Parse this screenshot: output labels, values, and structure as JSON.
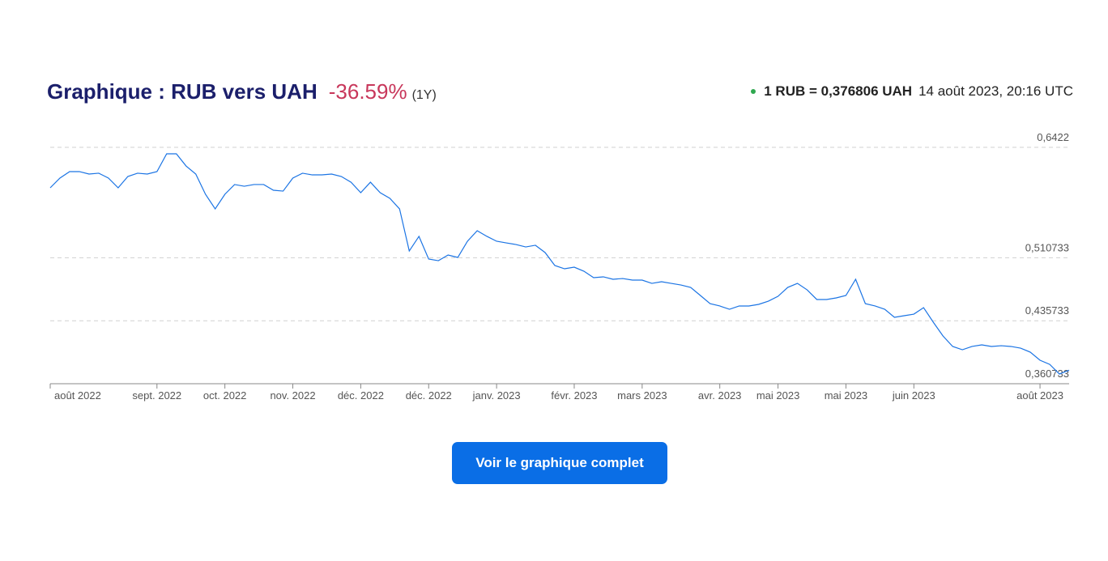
{
  "header": {
    "title": "Graphique : RUB vers UAH",
    "change": "-36.59%",
    "period": "(1Y)",
    "rate": "1 RUB = 0,376806 UAH",
    "timestamp": "14 août 2023, 20:16 UTC"
  },
  "button": {
    "label": "Voir le graphique complet"
  },
  "chart_data": {
    "type": "line",
    "categories": [
      "août 2022",
      null,
      null,
      null,
      null,
      null,
      null,
      null,
      null,
      null,
      null,
      "sept. 2022",
      null,
      null,
      null,
      null,
      null,
      null,
      "oct. 2022",
      null,
      null,
      null,
      null,
      null,
      null,
      "nov. 2022",
      null,
      null,
      null,
      null,
      null,
      null,
      "déc. 2022",
      null,
      null,
      null,
      null,
      null,
      null,
      "déc. 2022",
      null,
      null,
      null,
      null,
      null,
      null,
      "janv. 2023",
      null,
      null,
      null,
      null,
      null,
      null,
      null,
      "févr. 2023",
      null,
      null,
      null,
      null,
      null,
      null,
      "mars 2023",
      null,
      null,
      null,
      null,
      null,
      null,
      null,
      "avr. 2023",
      null,
      null,
      null,
      null,
      null,
      "mai 2023",
      null,
      null,
      null,
      null,
      null,
      null,
      "mai 2023",
      null,
      null,
      null,
      null,
      null,
      null,
      "juin 2023",
      null,
      null,
      null,
      null,
      null,
      null,
      null,
      null,
      null,
      null,
      null,
      null,
      "août 2023",
      null,
      null,
      null
    ],
    "series": [
      {
        "color": "#1b74e4",
        "values": [
          0.594,
          0.6056,
          0.6133,
          0.6133,
          0.6104,
          0.6114,
          0.6056,
          0.594,
          0.6075,
          0.6114,
          0.6104,
          0.6133,
          0.6345,
          0.6345,
          0.62,
          0.6104,
          0.5863,
          0.5689,
          0.5863,
          0.5979,
          0.5959,
          0.5979,
          0.5979,
          0.5911,
          0.5901,
          0.6056,
          0.6114,
          0.6094,
          0.6094,
          0.6104,
          0.6075,
          0.6007,
          0.5882,
          0.6007,
          0.5882,
          0.5815,
          0.5689,
          0.5188,
          0.5362,
          0.5092,
          0.5072,
          0.514,
          0.5111,
          0.5304,
          0.5429,
          0.5362,
          0.5304,
          0.5284,
          0.5265,
          0.5236,
          0.5256,
          0.5169,
          0.5015,
          0.4976,
          0.4995,
          0.4947,
          0.487,
          0.488,
          0.4851,
          0.486,
          0.4841,
          0.4841,
          0.4802,
          0.4822,
          0.4802,
          0.4783,
          0.4754,
          0.4658,
          0.4561,
          0.4533,
          0.4494,
          0.4533,
          0.4533,
          0.4552,
          0.459,
          0.4648,
          0.4754,
          0.4802,
          0.4725,
          0.461,
          0.461,
          0.4629,
          0.4658,
          0.4851,
          0.4561,
          0.4533,
          0.4494,
          0.4398,
          0.4417,
          0.4436,
          0.4513,
          0.434,
          0.4176,
          0.4051,
          0.4012,
          0.4051,
          0.407,
          0.4051,
          0.406,
          0.4051,
          0.4031,
          0.3983,
          0.3887,
          0.3838,
          0.3723,
          0.3768
        ]
      }
    ],
    "ylim": [
      0.360733,
      0.6422
    ],
    "yticks": [
      {
        "value": 0.6422,
        "label": "0,6422"
      },
      {
        "value": 0.510733,
        "label": "0,510733"
      },
      {
        "value": 0.435733,
        "label": "0,435733"
      },
      {
        "value": 0.360733,
        "label": "0,360733"
      }
    ],
    "grid": true
  }
}
